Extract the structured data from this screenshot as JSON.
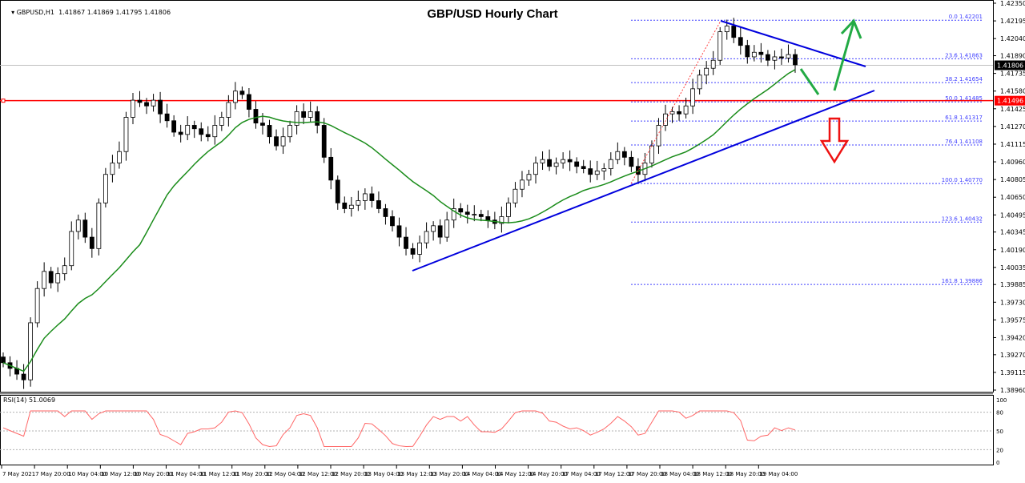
{
  "header": {
    "symbol_line": "GBPUSD,H1  1.41867 1.41869 1.41795 1.41806",
    "dropdown_icon": "triangle-down"
  },
  "title": "GBP/USD Hourly Chart",
  "price_axis": {
    "ticks": [
      "1.42350",
      "1.42195",
      "1.42040",
      "1.41890",
      "1.41735",
      "1.41580",
      "1.41425",
      "1.41270",
      "1.41115",
      "1.40960",
      "1.40805",
      "1.40650",
      "1.40495",
      "1.40345",
      "1.40190",
      "1.40035",
      "1.39885",
      "1.39730",
      "1.39575",
      "1.39420",
      "1.39270",
      "1.39115",
      "1.38960"
    ],
    "current_price": "1.41806",
    "current_price_bg": "#000000",
    "support_price": "1.41496",
    "support_color": "#ff0000"
  },
  "fib_levels": [
    {
      "label": "0.0 1.42201",
      "price": 1.42201
    },
    {
      "label": "23.6 1.41863",
      "price": 1.41863
    },
    {
      "label": "38.2 1.41654",
      "price": 1.41654
    },
    {
      "label": "50.0 1.41485",
      "price": 1.41485
    },
    {
      "label": "61.8 1.41317",
      "price": 1.41317
    },
    {
      "label": "76.4 1.41108",
      "price": 1.41108
    },
    {
      "label": "100.0 1.40770",
      "price": 1.4077
    },
    {
      "label": "123.6 1.40432",
      "price": 1.40432
    },
    {
      "label": "161.8 1.39886",
      "price": 1.39886
    }
  ],
  "rsi": {
    "label": "RSI(14) 51.0069",
    "ticks": [
      "100",
      "80",
      "50",
      "20",
      "0"
    ],
    "color": "#ff6666"
  },
  "time_axis": [
    "7 May 2021",
    "7 May 20:00",
    "10 May 04:00",
    "10 May 12:00",
    "10 May 20:00",
    "11 May 04:00",
    "11 May 12:00",
    "11 May 20:00",
    "12 May 04:00",
    "12 May 12:00",
    "12 May 20:00",
    "13 May 04:00",
    "13 May 12:00",
    "13 May 20:00",
    "14 May 04:00",
    "14 May 12:00",
    "14 May 20:00",
    "17 May 04:00",
    "17 May 12:00",
    "17 May 20:00",
    "18 May 04:00",
    "18 May 12:00",
    "18 May 20:00",
    "19 May 04:00"
  ],
  "colors": {
    "ma": "#1a8c1a",
    "trendline": "#0000dd",
    "fib": "#4040ff",
    "fib_diag": "#ff4040",
    "up_arrow": "#22aa44",
    "down_arrow": "#ee1111",
    "bull_candle": "#ffffff",
    "bear_candle": "#000000"
  },
  "chart_data": {
    "type": "candlestick",
    "title": "GBP/USD Hourly Chart",
    "symbol": "GBPUSD",
    "timeframe": "H1",
    "ohlc_last": {
      "open": 1.41867,
      "high": 1.41869,
      "low": 1.41795,
      "close": 1.41806
    },
    "ylim": [
      1.3896,
      1.4235
    ],
    "x_labels": [
      "7 May 2021",
      "7 May 20:00",
      "10 May 04:00",
      "10 May 12:00",
      "10 May 20:00",
      "11 May 04:00",
      "11 May 12:00",
      "11 May 20:00",
      "12 May 04:00",
      "12 May 12:00",
      "12 May 20:00",
      "13 May 04:00",
      "13 May 12:00",
      "13 May 20:00",
      "14 May 04:00",
      "14 May 12:00",
      "14 May 20:00",
      "17 May 04:00",
      "17 May 12:00",
      "17 May 20:00",
      "18 May 04:00",
      "18 May 12:00",
      "18 May 20:00",
      "19 May 04:00"
    ],
    "horizontal_support": 1.41496,
    "fibonacci": {
      "0.0": 1.42201,
      "23.6": 1.41863,
      "38.2": 1.41654,
      "50.0": 1.41485,
      "61.8": 1.41317,
      "76.4": 1.41108,
      "100.0": 1.4077,
      "123.6": 1.40432,
      "161.8": 1.39886
    },
    "indicators": [
      {
        "name": "Moving Average",
        "color": "#1a8c1a"
      },
      {
        "name": "RSI(14)",
        "value": 51.0069,
        "levels": [
          20,
          50,
          80
        ],
        "range": [
          0,
          100
        ]
      }
    ],
    "annotations": [
      "Rising trend line (support)",
      "Falling trend line (resistance)",
      "Green arrow: dip then rally",
      "Red arrow: breakdown"
    ],
    "close_path": [
      1.392,
      1.3915,
      1.391,
      1.3905,
      1.3955,
      1.3985,
      1.4,
      1.399,
      1.3998,
      1.4005,
      1.4035,
      1.4045,
      1.403,
      1.402,
      1.406,
      1.4085,
      1.4095,
      1.4105,
      1.4135,
      1.415,
      1.4148,
      1.4145,
      1.415,
      1.4138,
      1.4132,
      1.4122,
      1.412,
      1.4128,
      1.4125,
      1.412,
      1.4118,
      1.4128,
      1.4135,
      1.4148,
      1.4158,
      1.4155,
      1.4142,
      1.413,
      1.4128,
      1.4118,
      1.411,
      1.4118,
      1.4128,
      1.414,
      1.4135,
      1.414,
      1.4128,
      1.41,
      1.408,
      1.406,
      1.4055,
      1.4058,
      1.4062,
      1.4068,
      1.4062,
      1.4055,
      1.4048,
      1.404,
      1.403,
      1.402,
      1.4015,
      1.4025,
      1.4035,
      1.404,
      1.403,
      1.4045,
      1.4055,
      1.4052,
      1.405,
      1.405,
      1.4048,
      1.4045,
      1.4042,
      1.4048,
      1.406,
      1.4072,
      1.408,
      1.4085,
      1.4095,
      1.4098,
      1.4092,
      1.4095,
      1.4098,
      1.4096,
      1.4092,
      1.409,
      1.4085,
      1.4088,
      1.409,
      1.4098,
      1.4105,
      1.41,
      1.4092,
      1.4085,
      1.4095,
      1.411,
      1.4128,
      1.4138,
      1.414,
      1.4138,
      1.4145,
      1.416,
      1.4172,
      1.4178,
      1.4185,
      1.421,
      1.4215,
      1.4205,
      1.4198,
      1.4188,
      1.4192,
      1.419,
      1.4185,
      1.4188,
      1.4187,
      1.419,
      1.4181
    ]
  }
}
